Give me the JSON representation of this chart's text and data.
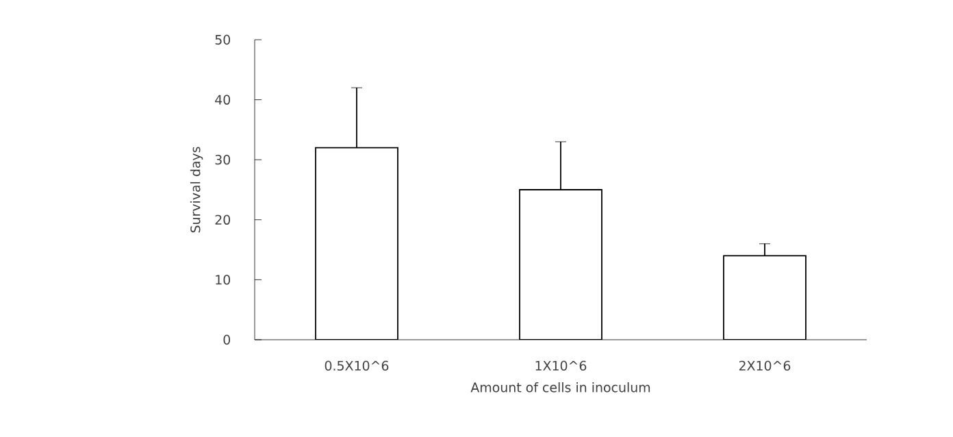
{
  "chart_data": {
    "type": "bar",
    "xlabel": "Amount of cells in inoculum",
    "ylabel": "Survival days",
    "categories": [
      "0.5X10^6",
      "1X10^6",
      "2X10^6"
    ],
    "values": [
      32,
      25,
      14
    ],
    "errors": [
      [
        32,
        42
      ],
      [
        25,
        33
      ],
      [
        14,
        16
      ]
    ],
    "color": "#ffffff",
    "ylim": [
      0,
      50
    ],
    "yticks": [
      0,
      10,
      20,
      30,
      40,
      50
    ],
    "grid": false
  }
}
